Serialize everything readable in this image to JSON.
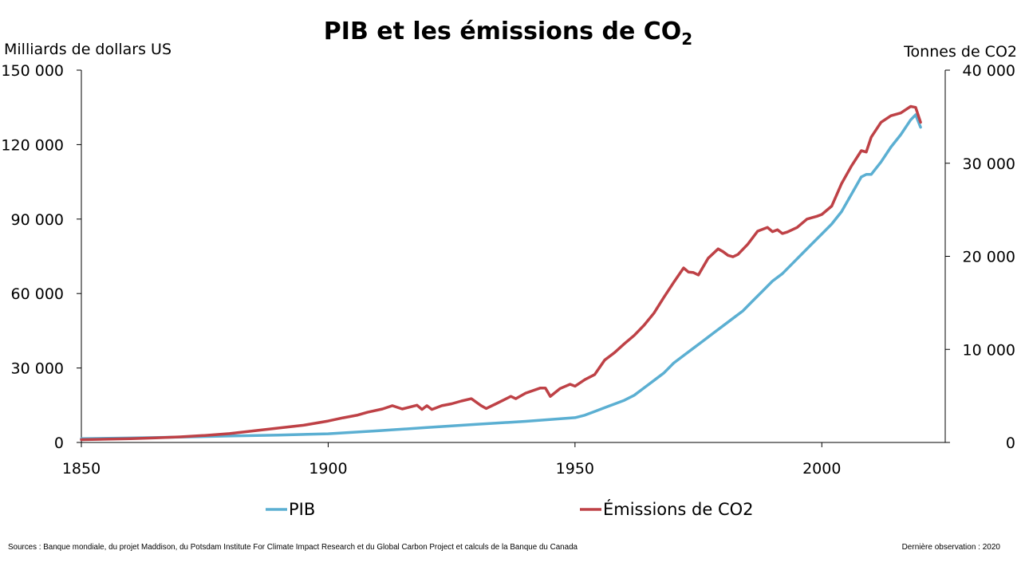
{
  "chart_data": {
    "type": "line",
    "title": "PIB et les émissions de CO",
    "title_subscript": "2",
    "y_left_label": "Milliards de dollars US",
    "y_right_label": "Tonnes de CO2",
    "x_ticks": [
      "1850",
      "1900",
      "1950",
      "2000"
    ],
    "x_tick_values": [
      1850,
      1900,
      1950,
      2000
    ],
    "y_left_ticks": [
      "0",
      "30 000",
      "60 000",
      "90 000",
      "120 000",
      "150 000"
    ],
    "y_left_tick_values": [
      0,
      30000,
      60000,
      90000,
      120000,
      150000
    ],
    "y_right_ticks": [
      "0",
      "10 000",
      "20 000",
      "30 000",
      "40 000"
    ],
    "y_right_tick_values": [
      0,
      10000,
      20000,
      30000,
      40000
    ],
    "xlim": [
      1850,
      2025
    ],
    "y_left_lim": [
      0,
      150000
    ],
    "y_right_lim": [
      0,
      40000
    ],
    "grid": false,
    "legend_position": "bottom",
    "series": [
      {
        "name": "PIB",
        "axis": "left",
        "color": "#5BAFD2",
        "x": [
          1850,
          1860,
          1870,
          1880,
          1890,
          1900,
          1910,
          1920,
          1930,
          1940,
          1950,
          1952,
          1954,
          1956,
          1958,
          1960,
          1962,
          1964,
          1966,
          1968,
          1970,
          1972,
          1974,
          1976,
          1978,
          1980,
          1982,
          1984,
          1986,
          1988,
          1990,
          1992,
          1994,
          1996,
          1998,
          2000,
          2002,
          2004,
          2006,
          2008,
          2009,
          2010,
          2012,
          2014,
          2016,
          2018,
          2019,
          2020
        ],
        "y": [
          1500,
          1800,
          2200,
          2600,
          3000,
          3500,
          4700,
          6000,
          7300,
          8500,
          10000,
          11000,
          12500,
          14000,
          15500,
          17000,
          19000,
          22000,
          25000,
          28000,
          32000,
          35000,
          38000,
          41000,
          44000,
          47000,
          50000,
          53000,
          57000,
          61000,
          65000,
          68000,
          72000,
          76000,
          80000,
          84000,
          88000,
          93000,
          100000,
          107000,
          108000,
          108000,
          113000,
          119000,
          124000,
          130000,
          132000,
          127000
        ]
      },
      {
        "name": "Émissions de CO2",
        "axis": "right",
        "color": "#BE4146",
        "x": [
          1850,
          1860,
          1865,
          1870,
          1875,
          1880,
          1885,
          1890,
          1895,
          1900,
          1903,
          1906,
          1908,
          1911,
          1913,
          1915,
          1918,
          1919,
          1920,
          1921,
          1923,
          1925,
          1927,
          1929,
          1931,
          1932,
          1934,
          1937,
          1938,
          1940,
          1943,
          1944,
          1945,
          1947,
          1949,
          1950,
          1952,
          1954,
          1956,
          1958,
          1960,
          1962,
          1964,
          1966,
          1968,
          1970,
          1972,
          1973,
          1974,
          1975,
          1977,
          1979,
          1980,
          1981,
          1982,
          1983,
          1985,
          1987,
          1989,
          1990,
          1991,
          1992,
          1993,
          1995,
          1997,
          1999,
          2000,
          2002,
          2004,
          2006,
          2008,
          2009,
          2010,
          2012,
          2014,
          2016,
          2017,
          2018,
          2019,
          2020
        ],
        "y": [
          300,
          400,
          500,
          600,
          750,
          950,
          1250,
          1550,
          1850,
          2300,
          2650,
          2950,
          3250,
          3600,
          3950,
          3600,
          4000,
          3550,
          3950,
          3550,
          3950,
          4150,
          4450,
          4700,
          3950,
          3650,
          4150,
          4950,
          4700,
          5300,
          5850,
          5850,
          4950,
          5800,
          6250,
          6050,
          6750,
          7300,
          8850,
          9650,
          10600,
          11500,
          12600,
          13900,
          15600,
          17200,
          18750,
          18300,
          18250,
          18000,
          19800,
          20800,
          20500,
          20100,
          19950,
          20200,
          21300,
          22700,
          23100,
          22650,
          22850,
          22450,
          22600,
          23100,
          24000,
          24300,
          24500,
          25400,
          27800,
          29700,
          31350,
          31200,
          32800,
          34400,
          35100,
          35400,
          35750,
          36100,
          36000,
          34400
        ]
      }
    ]
  },
  "footer": {
    "sources": "Sources : Banque mondiale, du projet Maddison, du Potsdam Institute For Climate Impact Research et du Global Carbon Project et calculs de la Banque du Canada",
    "last_observation": "Dernière observation : 2020"
  }
}
